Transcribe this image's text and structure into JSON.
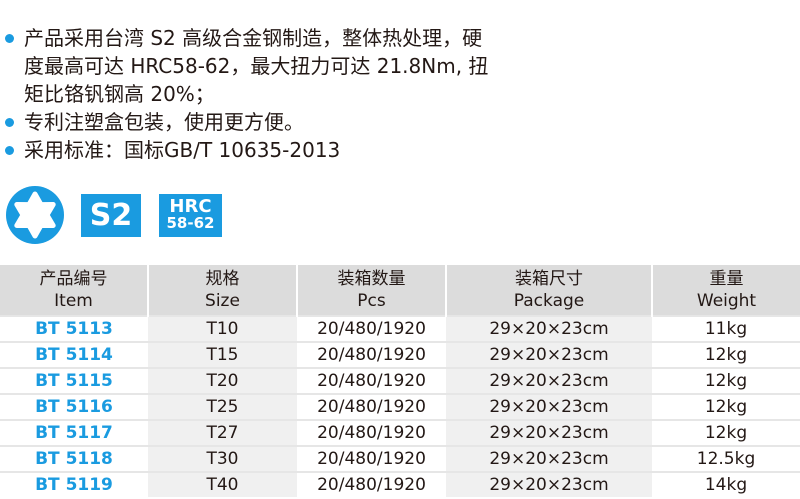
{
  "features": [
    "产品采用台湾 S2 高级合金钢制造，整体热处理，硬度最高可达 HRC58-62，最大扭力可达 21.8Nm, 扭矩比铬钒钢高 20%；",
    "专利注塑盒包装，使用更方便。",
    "采用标准：国标GB/T 10635-2013"
  ],
  "badges": {
    "s2": "S2",
    "hrc_title": "HRC",
    "hrc_range": "58-62",
    "torx_icon": "torx-star-icon",
    "accent": "#1a9be0"
  },
  "table": {
    "headers": [
      {
        "cn": "产品编号",
        "en": "Item"
      },
      {
        "cn": "规格",
        "en": "Size"
      },
      {
        "cn": "装箱数量",
        "en": "Pcs"
      },
      {
        "cn": "装箱尺寸",
        "en": "Package"
      },
      {
        "cn": "重量",
        "en": "Weight"
      }
    ],
    "rows": [
      [
        "BT 5113",
        "T10",
        "20/480/1920",
        "29×20×23cm",
        "11kg"
      ],
      [
        "BT 5114",
        "T15",
        "20/480/1920",
        "29×20×23cm",
        "12kg"
      ],
      [
        "BT 5115",
        "T20",
        "20/480/1920",
        "29×20×23cm",
        "12kg"
      ],
      [
        "BT 5116",
        "T25",
        "20/480/1920",
        "29×20×23cm",
        "12kg"
      ],
      [
        "BT 5117",
        "T27",
        "20/480/1920",
        "29×20×23cm",
        "12kg"
      ],
      [
        "BT 5118",
        "T30",
        "20/480/1920",
        "29×20×23cm",
        "12.5kg"
      ],
      [
        "BT 5119",
        "T40",
        "20/480/1920",
        "29×20×23cm",
        "14kg"
      ]
    ]
  }
}
